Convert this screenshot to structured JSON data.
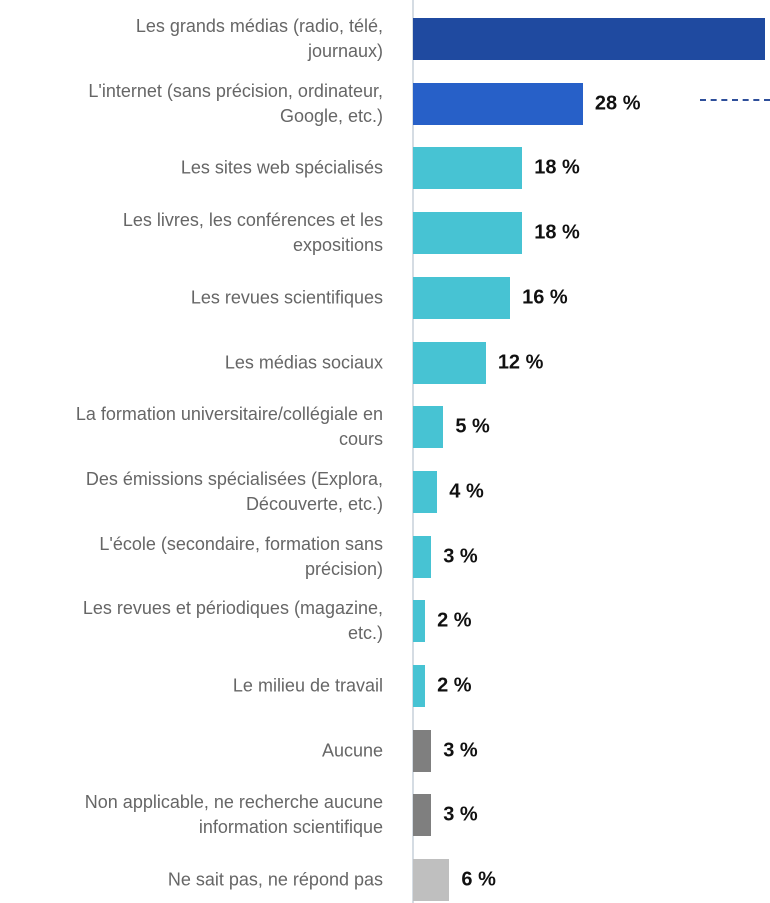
{
  "chart_data": {
    "type": "bar",
    "orientation": "horizontal",
    "categories": [
      "Les grands médias (radio, télé,\njournaux)",
      "L'internet (sans précision, ordinateur,\nGoogle, etc.)",
      "Les sites web spécialisés",
      "Les livres, les conférences et les\nexpositions",
      "Les revues scientifiques",
      "Les médias sociaux",
      "La formation universitaire/collégiale en\ncours",
      "Des émissions spécialisées (Explora,\nDécouverte, etc.)",
      "L'école (secondaire, formation sans\nprécision)",
      "Les revues et périodiques (magazine,\netc.)",
      "Le milieu de travail",
      "Aucune",
      "Non applicable, ne recherche aucune\ninformation scientifique",
      "Ne sait pas, ne répond pas"
    ],
    "values": [
      58,
      28,
      18,
      18,
      16,
      12,
      5,
      4,
      3,
      2,
      2,
      3,
      3,
      6
    ],
    "value_labels": [
      null,
      "28 %",
      "18 %",
      "18 %",
      "16 %",
      "12 %",
      "5 %",
      "4 %",
      "3 %",
      "2 %",
      "2 %",
      "3 %",
      "3 %",
      "6 %"
    ],
    "colors": [
      "#1f4aa0",
      "#2760c8",
      "#47c3d3",
      "#47c3d3",
      "#47c3d3",
      "#47c3d3",
      "#47c3d3",
      "#47c3d3",
      "#47c3d3",
      "#47c3d3",
      "#47c3d3",
      "#7f7f7f",
      "#7f7f7f",
      "#bfbfbf"
    ],
    "xlim": [
      0,
      58
    ]
  }
}
